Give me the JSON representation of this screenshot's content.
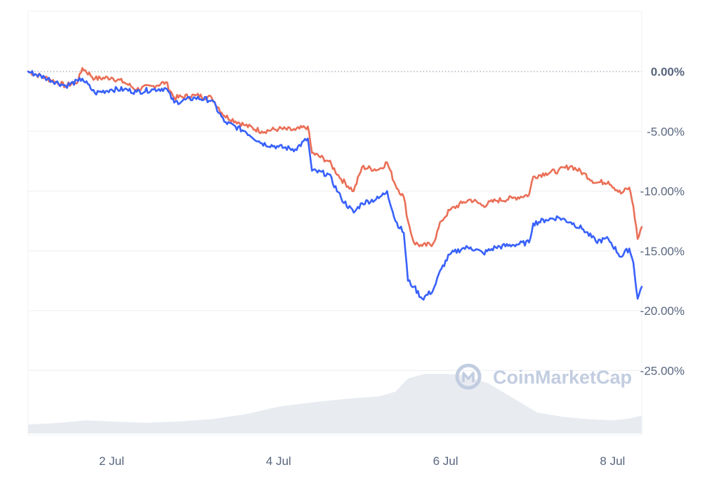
{
  "chart_data": {
    "type": "line",
    "watermark": "CoinMarketCap",
    "x_ticks": [
      "2 Jul",
      "4 Jul",
      "6 Jul",
      "8 Jul"
    ],
    "y_ticks": [
      "0.00%",
      "-5.00%",
      "-10.00%",
      "-15.00%",
      "-20.00%",
      "-25.00%"
    ],
    "y_tick_values": [
      0,
      -5,
      -10,
      -15,
      -20,
      -25
    ],
    "ylim": [
      -30,
      5
    ],
    "xlim": [
      1.0,
      8.35
    ],
    "zero_reference_line": "dotted",
    "grid": "horizontal",
    "series": [
      {
        "color": "#ea6f57",
        "points": [
          [
            1.0,
            0.0
          ],
          [
            1.2,
            -0.5
          ],
          [
            1.45,
            -1.2
          ],
          [
            1.6,
            -0.8
          ],
          [
            1.65,
            0.3
          ],
          [
            1.8,
            -0.6
          ],
          [
            2.0,
            -0.5
          ],
          [
            2.15,
            -0.9
          ],
          [
            2.3,
            -1.5
          ],
          [
            2.5,
            -1.2
          ],
          [
            2.65,
            -0.9
          ],
          [
            2.75,
            -2.2
          ],
          [
            3.0,
            -2.0
          ],
          [
            3.2,
            -2.2
          ],
          [
            3.35,
            -3.7
          ],
          [
            3.6,
            -4.5
          ],
          [
            3.8,
            -5.0
          ],
          [
            4.0,
            -4.8
          ],
          [
            4.2,
            -4.9
          ],
          [
            4.35,
            -4.6
          ],
          [
            4.4,
            -6.8
          ],
          [
            4.6,
            -7.5
          ],
          [
            4.75,
            -9.0
          ],
          [
            4.9,
            -10.0
          ],
          [
            5.0,
            -8.0
          ],
          [
            5.2,
            -8.2
          ],
          [
            5.3,
            -7.6
          ],
          [
            5.4,
            -9.5
          ],
          [
            5.5,
            -10.5
          ],
          [
            5.55,
            -12.5
          ],
          [
            5.62,
            -14.3
          ],
          [
            5.72,
            -14.6
          ],
          [
            5.85,
            -14.4
          ],
          [
            5.95,
            -12.5
          ],
          [
            6.05,
            -11.6
          ],
          [
            6.2,
            -11.0
          ],
          [
            6.3,
            -10.7
          ],
          [
            6.45,
            -11.2
          ],
          [
            6.6,
            -10.8
          ],
          [
            6.8,
            -10.6
          ],
          [
            7.0,
            -10.3
          ],
          [
            7.05,
            -8.8
          ],
          [
            7.2,
            -8.5
          ],
          [
            7.35,
            -8.3
          ],
          [
            7.5,
            -7.9
          ],
          [
            7.65,
            -8.5
          ],
          [
            7.8,
            -9.3
          ],
          [
            7.95,
            -9.2
          ],
          [
            8.1,
            -10.2
          ],
          [
            8.2,
            -9.7
          ],
          [
            8.25,
            -11.3
          ],
          [
            8.3,
            -14.0
          ],
          [
            8.35,
            -13.0
          ]
        ]
      },
      {
        "color": "#3861fb",
        "points": [
          [
            1.0,
            0.0
          ],
          [
            1.2,
            -0.5
          ],
          [
            1.45,
            -1.2
          ],
          [
            1.6,
            -0.8
          ],
          [
            1.65,
            -0.6
          ],
          [
            1.8,
            -1.8
          ],
          [
            2.0,
            -1.5
          ],
          [
            2.15,
            -1.5
          ],
          [
            2.3,
            -1.7
          ],
          [
            2.5,
            -1.5
          ],
          [
            2.65,
            -1.4
          ],
          [
            2.75,
            -2.6
          ],
          [
            3.0,
            -2.2
          ],
          [
            3.2,
            -2.4
          ],
          [
            3.35,
            -4.2
          ],
          [
            3.6,
            -5.0
          ],
          [
            3.8,
            -6.0
          ],
          [
            4.0,
            -6.3
          ],
          [
            4.2,
            -6.5
          ],
          [
            4.35,
            -5.6
          ],
          [
            4.4,
            -8.3
          ],
          [
            4.6,
            -8.6
          ],
          [
            4.75,
            -10.6
          ],
          [
            4.9,
            -11.8
          ],
          [
            5.0,
            -11.0
          ],
          [
            5.2,
            -10.6
          ],
          [
            5.3,
            -10.0
          ],
          [
            5.4,
            -12.5
          ],
          [
            5.5,
            -13.5
          ],
          [
            5.55,
            -17.5
          ],
          [
            5.62,
            -18.0
          ],
          [
            5.72,
            -19.0
          ],
          [
            5.85,
            -18.3
          ],
          [
            5.95,
            -16.5
          ],
          [
            6.05,
            -15.3
          ],
          [
            6.2,
            -14.8
          ],
          [
            6.3,
            -14.7
          ],
          [
            6.45,
            -15.2
          ],
          [
            6.6,
            -14.7
          ],
          [
            6.8,
            -14.5
          ],
          [
            7.0,
            -14.3
          ],
          [
            7.05,
            -12.7
          ],
          [
            7.2,
            -12.4
          ],
          [
            7.35,
            -12.2
          ],
          [
            7.5,
            -12.6
          ],
          [
            7.65,
            -13.2
          ],
          [
            7.8,
            -14.2
          ],
          [
            7.95,
            -14.0
          ],
          [
            8.1,
            -15.5
          ],
          [
            8.2,
            -14.8
          ],
          [
            8.25,
            -16.0
          ],
          [
            8.3,
            -19.0
          ],
          [
            8.35,
            -18.0
          ]
        ]
      }
    ],
    "volume_area": {
      "color": "#e8ecf1",
      "points": [
        [
          1.0,
          0.15
        ],
        [
          1.4,
          0.18
        ],
        [
          1.7,
          0.22
        ],
        [
          2.0,
          0.2
        ],
        [
          2.4,
          0.18
        ],
        [
          2.8,
          0.2
        ],
        [
          3.2,
          0.24
        ],
        [
          3.6,
          0.32
        ],
        [
          4.0,
          0.45
        ],
        [
          4.4,
          0.52
        ],
        [
          4.8,
          0.58
        ],
        [
          5.2,
          0.62
        ],
        [
          5.4,
          0.7
        ],
        [
          5.55,
          0.92
        ],
        [
          5.75,
          1.0
        ],
        [
          6.0,
          1.0
        ],
        [
          6.2,
          0.98
        ],
        [
          6.5,
          0.85
        ],
        [
          6.8,
          0.6
        ],
        [
          7.1,
          0.35
        ],
        [
          7.4,
          0.28
        ],
        [
          7.7,
          0.24
        ],
        [
          8.0,
          0.22
        ],
        [
          8.2,
          0.25
        ],
        [
          8.35,
          0.3
        ]
      ]
    }
  }
}
